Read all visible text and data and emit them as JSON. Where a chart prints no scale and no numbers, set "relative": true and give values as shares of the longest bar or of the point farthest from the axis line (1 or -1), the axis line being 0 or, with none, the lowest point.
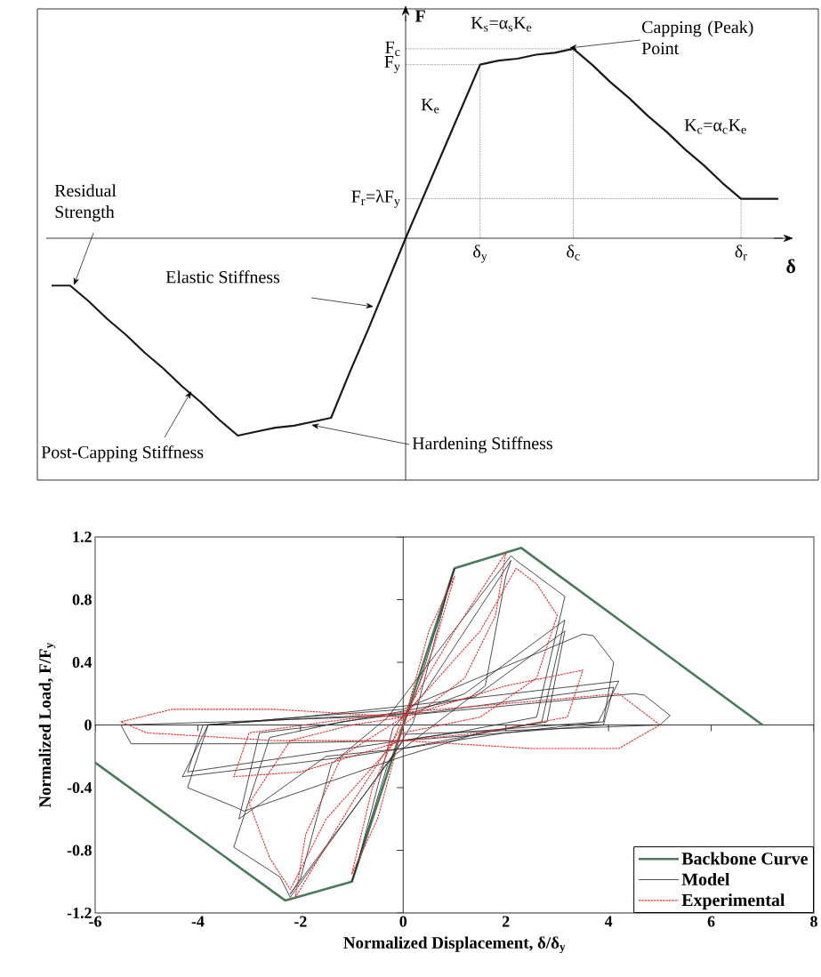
{
  "chart_data": [
    {
      "type": "line",
      "relative": true,
      "xlabel": "δ",
      "ylabel": "F",
      "color": "#1a1a1a",
      "categories": [
        null,
        null,
        null,
        null,
        null,
        null,
        null,
        null,
        null,
        null,
        null,
        null,
        null,
        null,
        null,
        null,
        null,
        null,
        null,
        null,
        null,
        null,
        null,
        null,
        "δ$_{y}$",
        null,
        null,
        null,
        null,
        "δ$_{c}$",
        null,
        null,
        null,
        null,
        null,
        null,
        null,
        null,
        "δ$_{r}$",
        null,
        null
      ],
      "values": [
        null,
        -0.24,
        -0.24,
        -0.32,
        -0.41,
        -0.49,
        -0.58,
        -0.66,
        -0.75,
        -0.83,
        -0.92,
        -1.0,
        -0.98,
        -0.96,
        -0.95,
        -0.93,
        -0.91,
        -0.68,
        -0.46,
        -0.23,
        0,
        0.22,
        0.44,
        0.66,
        0.88,
        0.9,
        0.91,
        0.93,
        0.94,
        0.96,
        0.88,
        0.79,
        0.71,
        0.62,
        0.54,
        0.45,
        0.37,
        0.28,
        0.2,
        0.2,
        0.2
      ],
      "ref_lines": [
        {
          "axis": "y",
          "value": 0.96,
          "label": "F$_{c}$",
          "line_style": "dotted"
        },
        {
          "axis": "y",
          "value": 0.88,
          "label": "F$_{y}$",
          "line_style": "dotted"
        },
        {
          "axis": "y",
          "value": 0.2,
          "label": "F$_{r}$=λF$_{y}$",
          "line_style": "dotted"
        },
        {
          "axis": "x",
          "value": "δ$_{y}$",
          "line_style": "dotted"
        },
        {
          "axis": "x",
          "value": "δ$_{c}$",
          "line_style": "dotted"
        },
        {
          "axis": "x",
          "value": "δ$_{r}$",
          "line_style": "dotted"
        }
      ],
      "annotations": [
        "Residual Strength",
        "Elastic Stiffness",
        "Post-Capping Stiffness",
        "Hardening Stiffness",
        "Capping (Peak) Point",
        "K$_{e}$",
        "K$_{s}$=α$_{s}$K$_{e}$",
        "K$_{c}$=α$_{c}$K$_{e}$"
      ]
    },
    {
      "type": "line",
      "xlabel": "Normalized Displacement, δ/δ$_{y}$",
      "ylabel": "Normalized Load, F/F$_{y}$",
      "xlim": [
        -6,
        8
      ],
      "ylim": [
        -1.2,
        1.2
      ],
      "xticks": [
        -6,
        -4,
        -2,
        0,
        2,
        4,
        6,
        8
      ],
      "yticks": [
        -1.2,
        -0.8,
        -0.4,
        0,
        0.4,
        0.8,
        1.2
      ],
      "legend": "bottom right",
      "series": [
        {
          "name": "Backbone Curve",
          "color": "#4a7a5a",
          "line_style": "solid",
          "x": [
            -6,
            -2.3,
            -1,
            0,
            1,
            2.3,
            7
          ],
          "values": [
            -0.24,
            -1.12,
            -1.0,
            0,
            1.0,
            1.13,
            0
          ]
        },
        {
          "name": "Model",
          "color": "#222222",
          "line_style": "solid",
          "x": [
            0,
            0.3,
            1.0,
            0.9,
            0.2,
            -0.3,
            -1.0,
            -0.9,
            -0.2,
            0.4,
            2.1,
            2.0,
            1.6,
            0.4,
            -0.2,
            -2.2,
            -2.0,
            -1.4,
            -0.3,
            2.1,
            2.2,
            3.15,
            2.6,
            1.0,
            0,
            -2.2,
            -2.4,
            -3.3,
            -2.6,
            -1.2,
            0.2,
            1.2,
            3.15,
            2.7,
            0,
            -1.5,
            -3.2,
            -2.8,
            -1.5,
            0.2,
            1.4,
            3.15,
            2.8,
            1.5,
            0,
            -3.1,
            -3.3,
            -4.2,
            -3.8,
            -2,
            0,
            3.5,
            3.7,
            4.1,
            3.9,
            2,
            -1,
            -4.3,
            -3.8,
            -2,
            0,
            4.2,
            3.8,
            1,
            -4.2,
            -3.9,
            -2,
            0.5,
            4.1,
            3.9,
            2,
            0,
            -3.0,
            -5.3,
            -5.5,
            -3.5,
            0,
            4.5,
            4.7,
            5.2,
            5.0,
            2.5,
            0
          ],
          "values": [
            0,
            0.25,
            1.0,
            0.9,
            0.02,
            -0.25,
            -1.0,
            -0.9,
            -0.02,
            0.2,
            1.05,
            0.95,
            0.25,
            -0.05,
            -0.2,
            -1.08,
            -0.98,
            -0.25,
            0.05,
            1.08,
            1.05,
            0.82,
            0.05,
            -0.05,
            -0.1,
            -1.1,
            -0.97,
            -0.78,
            -0.08,
            0.02,
            0.08,
            0.2,
            0.67,
            0.02,
            -0.15,
            -0.2,
            -0.6,
            -0.05,
            0,
            0.1,
            0.18,
            0.6,
            0.02,
            -0.05,
            -0.2,
            -0.55,
            -0.52,
            -0.4,
            0,
            0.05,
            0.1,
            0.58,
            0.57,
            0.4,
            0.02,
            -0.05,
            -0.2,
            -0.33,
            0,
            0.05,
            0.12,
            0.28,
            0.02,
            -0.05,
            -0.3,
            0,
            0.04,
            0.08,
            0.24,
            0,
            -0.05,
            -0.1,
            -0.12,
            -0.12,
            0,
            0.02,
            0.06,
            0.2,
            0.19,
            0.06,
            0,
            -0.03,
            -0.06
          ]
        },
        {
          "name": "Experimental",
          "color": "#e03030",
          "line_style": "dotted",
          "x": [
            0,
            0.5,
            1.0,
            0.6,
            0,
            -0.5,
            -1.0,
            -0.6,
            0,
            1.0,
            2.0,
            1.8,
            1.2,
            0,
            -1.0,
            -2.1,
            -1.9,
            -1.2,
            0,
            1.5,
            2.2,
            2.6,
            3.0,
            2.6,
            1.5,
            0,
            -1.5,
            -2.2,
            -2.6,
            -3.0,
            -2.2,
            -1,
            0,
            2.0,
            3.5,
            3.2,
            1.5,
            0,
            -2,
            -3.3,
            -3,
            -1.5,
            0,
            2.5,
            4.2,
            5.0,
            4.2,
            2.5,
            0,
            -2.5,
            -5.0,
            -5.5,
            -4.5,
            -2.5,
            0
          ],
          "values": [
            0,
            0.6,
            0.95,
            0.5,
            0,
            -0.6,
            -0.95,
            -0.4,
            0.05,
            0.6,
            1.1,
            0.7,
            0.3,
            0,
            -0.5,
            -1.1,
            -0.7,
            -0.2,
            0.05,
            0.6,
            1.0,
            0.9,
            0.7,
            0.3,
            0.05,
            -0.05,
            -0.6,
            -1.05,
            -0.85,
            -0.5,
            -0.1,
            0,
            0.05,
            0.25,
            0.35,
            0.05,
            -0.05,
            -0.1,
            -0.3,
            -0.33,
            -0.05,
            0.02,
            0.08,
            0.15,
            0.2,
            0,
            -0.15,
            -0.15,
            -0.1,
            -0.1,
            -0.05,
            0.02,
            0.1,
            0.1,
            0.05
          ]
        }
      ]
    }
  ]
}
